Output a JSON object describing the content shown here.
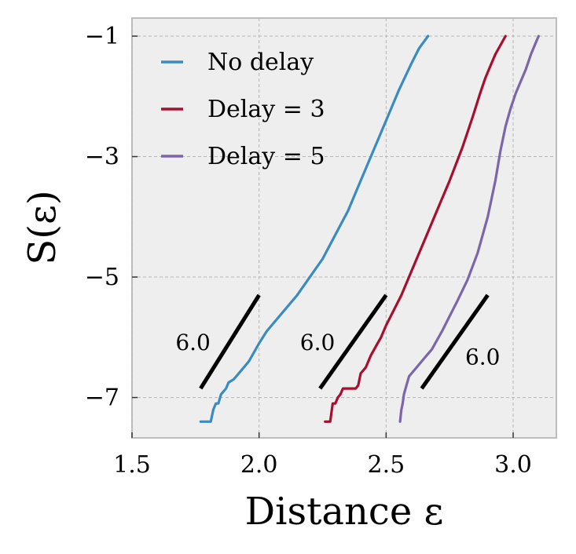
{
  "chart_data": {
    "type": "line",
    "title": "",
    "xlabel": "Distance ε",
    "ylabel": "S(ε)",
    "xlim": [
      1.5,
      3.17
    ],
    "ylim": [
      -7.67,
      -0.7
    ],
    "xticks": [
      1.5,
      2.0,
      2.5,
      3.0
    ],
    "xtick_labels": [
      "1.5",
      "2.0",
      "2.5",
      "3.0"
    ],
    "yticks": [
      -1,
      -3,
      -5,
      -7
    ],
    "ytick_labels": [
      "−1",
      "−3",
      "−5",
      "−7"
    ],
    "grid": true,
    "legend_position": "top-left",
    "background": "#eeeeee",
    "series": [
      {
        "name": "No delay",
        "color": "#3a8bc1",
        "x": [
          1.77,
          1.81,
          1.82,
          1.83,
          1.84,
          1.85,
          1.86,
          1.87,
          1.88,
          1.9,
          1.92,
          1.94,
          1.96,
          1.98,
          2.0,
          2.03,
          2.06,
          2.1,
          2.15,
          2.2,
          2.25,
          2.3,
          2.35,
          2.4,
          2.45,
          2.5,
          2.55,
          2.6,
          2.63,
          2.665
        ],
        "y": [
          -7.4,
          -7.4,
          -7.2,
          -7.1,
          -7.1,
          -6.95,
          -6.9,
          -6.85,
          -6.75,
          -6.7,
          -6.6,
          -6.5,
          -6.4,
          -6.25,
          -6.1,
          -5.9,
          -5.75,
          -5.55,
          -5.3,
          -5.0,
          -4.7,
          -4.3,
          -3.9,
          -3.4,
          -2.9,
          -2.4,
          -1.9,
          -1.45,
          -1.2,
          -1.0
        ]
      },
      {
        "name": "Delay = 3",
        "color": "#a60f2e",
        "x": [
          2.26,
          2.28,
          2.29,
          2.3,
          2.31,
          2.32,
          2.33,
          2.36,
          2.38,
          2.39,
          2.4,
          2.42,
          2.44,
          2.46,
          2.48,
          2.5,
          2.53,
          2.56,
          2.6,
          2.65,
          2.7,
          2.75,
          2.8,
          2.84,
          2.87,
          2.89,
          2.91,
          2.93,
          2.95,
          2.97
        ],
        "y": [
          -7.4,
          -7.4,
          -7.1,
          -7.1,
          -7.0,
          -6.95,
          -6.85,
          -6.85,
          -6.85,
          -6.8,
          -6.6,
          -6.5,
          -6.3,
          -6.15,
          -6.0,
          -5.8,
          -5.55,
          -5.3,
          -4.9,
          -4.4,
          -3.9,
          -3.4,
          -2.85,
          -2.35,
          -1.95,
          -1.7,
          -1.5,
          -1.3,
          -1.15,
          -1.0
        ]
      },
      {
        "name": "Delay = 5",
        "color": "#7c66ab",
        "x": [
          2.555,
          2.56,
          2.565,
          2.57,
          2.58,
          2.59,
          2.6,
          2.62,
          2.64,
          2.66,
          2.68,
          2.7,
          2.72,
          2.75,
          2.78,
          2.82,
          2.86,
          2.9,
          2.93,
          2.95,
          2.97,
          2.99,
          3.01,
          3.03,
          3.05,
          3.07,
          3.09,
          3.1
        ],
        "y": [
          -7.4,
          -7.2,
          -7.1,
          -6.95,
          -6.8,
          -6.65,
          -6.6,
          -6.5,
          -6.4,
          -6.3,
          -6.2,
          -6.05,
          -5.9,
          -5.65,
          -5.4,
          -5.05,
          -4.6,
          -4.0,
          -3.4,
          -2.9,
          -2.5,
          -2.2,
          -1.95,
          -1.75,
          -1.55,
          -1.3,
          -1.1,
          -1.0
        ]
      }
    ],
    "annotations": [
      {
        "text": "6.0",
        "segment": [
          [
            1.77,
            -6.85
          ],
          [
            2.0,
            -5.3
          ]
        ],
        "label_at": [
          1.74,
          -6.08
        ]
      },
      {
        "text": "6.0",
        "segment": [
          [
            2.24,
            -6.85
          ],
          [
            2.5,
            -5.3
          ]
        ],
        "label_at": [
          2.23,
          -6.08
        ]
      },
      {
        "text": "6.0",
        "segment": [
          [
            2.64,
            -6.85
          ],
          [
            2.9,
            -5.3
          ]
        ],
        "label_at": [
          2.88,
          -6.32
        ]
      }
    ]
  }
}
